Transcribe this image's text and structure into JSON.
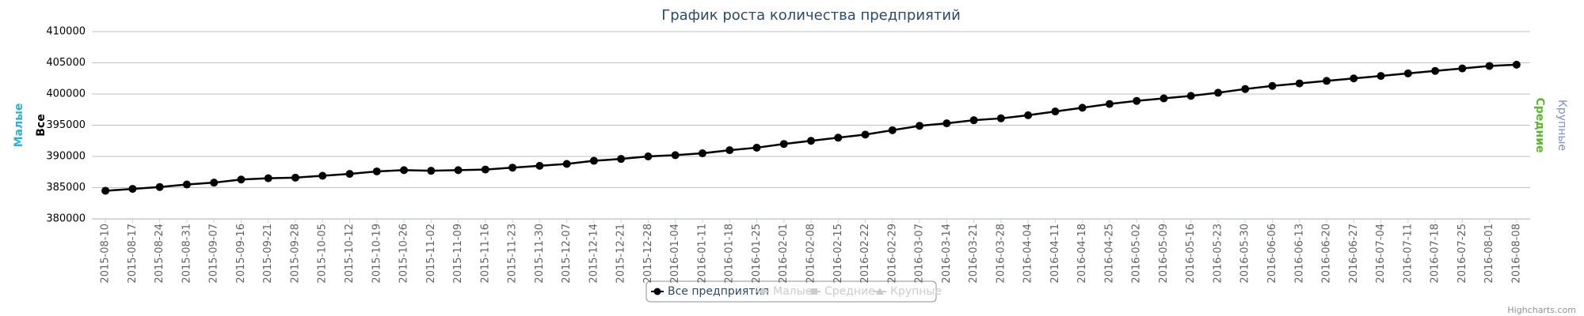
{
  "chart_data": {
    "type": "line",
    "title": "График роста количества предприятий",
    "y_axis_titles_left": [
      {
        "text": "Малые",
        "color": "#2bb0d6"
      },
      {
        "text": "Все",
        "color": "#000000"
      }
    ],
    "y_axis_titles_right": [
      {
        "text": "Средние",
        "color": "#5cb82a"
      },
      {
        "text": "Крупные",
        "color": "#7b8fd6"
      }
    ],
    "categories": [
      "2015-08-10",
      "2015-08-17",
      "2015-08-24",
      "2015-08-31",
      "2015-09-07",
      "2015-09-16",
      "2015-09-21",
      "2015-09-28",
      "2015-10-05",
      "2015-10-12",
      "2015-10-19",
      "2015-10-26",
      "2015-11-02",
      "2015-11-09",
      "2015-11-16",
      "2015-11-23",
      "2015-11-30",
      "2015-12-07",
      "2015-12-14",
      "2015-12-21",
      "2015-12-28",
      "2016-01-04",
      "2016-01-11",
      "2016-01-18",
      "2016-01-25",
      "2016-02-01",
      "2016-02-08",
      "2016-02-15",
      "2016-02-22",
      "2016-02-29",
      "2016-03-07",
      "2016-03-14",
      "2016-03-21",
      "2016-03-28",
      "2016-04-04",
      "2016-04-11",
      "2016-04-18",
      "2016-04-25",
      "2016-05-02",
      "2016-05-09",
      "2016-05-16",
      "2016-05-23",
      "2016-05-30",
      "2016-06-06",
      "2016-06-13",
      "2016-06-20",
      "2016-06-27",
      "2016-07-04",
      "2016-07-11",
      "2016-07-18",
      "2016-07-25",
      "2016-08-01",
      "2016-08-08"
    ],
    "series": [
      {
        "name": "Все предприятия",
        "color": "#000000",
        "visible": true,
        "values": [
          384500,
          384800,
          385100,
          385500,
          385800,
          386300,
          386500,
          386600,
          386900,
          387200,
          387600,
          387800,
          387700,
          387800,
          387900,
          388200,
          388500,
          388800,
          389300,
          389600,
          390000,
          390200,
          390500,
          391000,
          391400,
          392000,
          392500,
          393000,
          393500,
          394200,
          394900,
          395300,
          395800,
          396100,
          396600,
          397200,
          397800,
          398400,
          398900,
          399300,
          399700,
          400200,
          400800,
          401300,
          401700,
          402100,
          402500,
          402900,
          403300,
          403700,
          404100,
          404500,
          404700
        ]
      },
      {
        "name": "Малые",
        "color": "#2bb0d6",
        "visible": false,
        "symbol": "diamond"
      },
      {
        "name": "Средние",
        "color": "#5cb82a",
        "visible": false,
        "symbol": "square"
      },
      {
        "name": "Крупные",
        "color": "#7b8fd6",
        "visible": false,
        "symbol": "triangle"
      }
    ],
    "ylim": [
      380000,
      410000
    ],
    "yticks": [
      380000,
      385000,
      390000,
      395000,
      400000,
      405000,
      410000
    ],
    "grid": true,
    "credits": "Highcharts.com"
  }
}
